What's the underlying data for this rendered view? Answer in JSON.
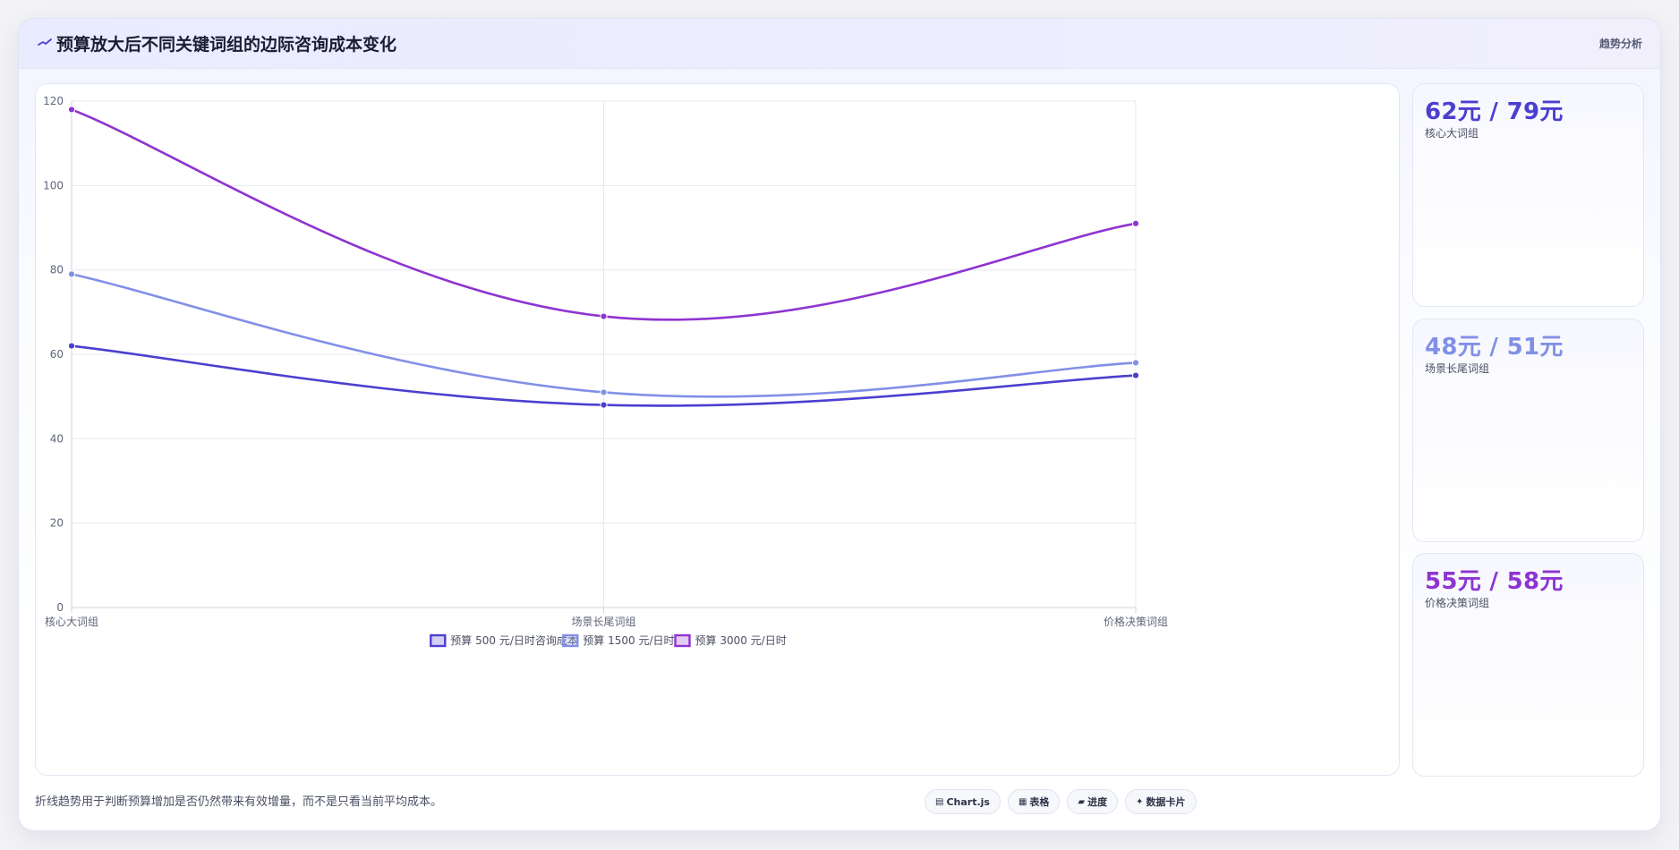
{
  "header": {
    "title": "预算放大后不同关键词组的边际咨询成本变化",
    "tag": "趋势分析",
    "icon": "trend-line-icon"
  },
  "chart_data": {
    "type": "line",
    "title": "",
    "xlabel": "",
    "ylabel": "",
    "categories": [
      "核心大词组",
      "场景长尾词组",
      "价格决策词组"
    ],
    "ylim": [
      0,
      120
    ],
    "yticks": [
      0,
      20,
      40,
      60,
      80,
      100,
      120
    ],
    "grid": true,
    "legend_position": "bottom",
    "series": [
      {
        "name": "预算 500 元/日时咨询成本",
        "values": [
          62,
          48,
          55
        ],
        "color": "#4b3fcf"
      },
      {
        "name": "预算 1500 元/日时",
        "values": [
          79,
          51,
          58
        ],
        "color": "#8190e6"
      },
      {
        "name": "预算 3000 元/日时",
        "values": [
          118,
          69,
          91
        ],
        "color": "#8e34d1"
      }
    ]
  },
  "kpis": [
    {
      "value": "62元 / 79元",
      "label": "核心大词组",
      "color": "#4b3fcf"
    },
    {
      "value": "48元 / 51元",
      "label": "场景长尾词组",
      "color": "#8190e6"
    },
    {
      "value": "55元 / 58元",
      "label": "价格决策词组",
      "color": "#8e34d1"
    }
  ],
  "footer": {
    "note": "折线趋势用于判断预算增加是否仍然带来有效增量，而不是只看当前平均成本。",
    "chips": [
      {
        "label": "Chart.js",
        "icon": "▤"
      },
      {
        "label": "表格",
        "icon": "▦"
      },
      {
        "label": "进度",
        "icon": "▰"
      },
      {
        "label": "数据卡片",
        "icon": "✦"
      }
    ]
  }
}
